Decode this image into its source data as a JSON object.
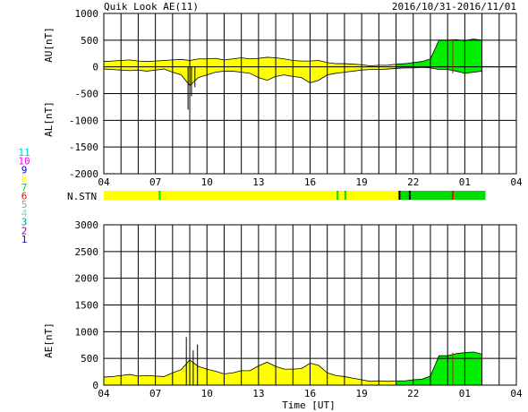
{
  "header": {
    "title": "Quik Look AE(11)",
    "date_range": "2016/10/31-2016/11/01"
  },
  "colors": {
    "yellow": "#ffff00",
    "green": "#00ee00",
    "red": "#ff0000",
    "grid": "#000000"
  },
  "station_legend": {
    "title": "N.STN",
    "items": [
      {
        "label": "11",
        "color": "#00cccc"
      },
      {
        "label": "10",
        "color": "#ff00ff"
      },
      {
        "label": "9",
        "color": "#0000cc"
      },
      {
        "label": "8",
        "color": "#ffff00"
      },
      {
        "label": "7",
        "color": "#00dd00"
      },
      {
        "label": "6",
        "color": "#ff0000"
      },
      {
        "label": "5",
        "color": "#999999"
      },
      {
        "label": "4",
        "color": "#99cccc"
      },
      {
        "label": "3",
        "color": "#009999"
      },
      {
        "label": "2",
        "color": "#990099"
      },
      {
        "label": "1",
        "color": "#0000ff"
      }
    ],
    "segments": [
      {
        "start": 4.0,
        "end": 21.2,
        "stations": 8
      },
      {
        "start": 21.2,
        "end": 26.2,
        "stations": 7
      }
    ],
    "markers": [
      {
        "hour": 7.25,
        "color": "#00dd00"
      },
      {
        "hour": 17.6,
        "color": "#00dd00"
      },
      {
        "hour": 18.05,
        "color": "#00dd00"
      },
      {
        "hour": 21.2,
        "color": "#000000"
      },
      {
        "hour": 21.8,
        "color": "#000000"
      },
      {
        "hour": 24.3,
        "color": "#ff0000"
      }
    ]
  },
  "x_axis": {
    "label": "Time [UT]",
    "ticks": [
      "04",
      "07",
      "10",
      "13",
      "16",
      "19",
      "22",
      "01",
      "04"
    ],
    "range_hours": [
      4,
      28
    ]
  },
  "chart_data": [
    {
      "type": "area",
      "name": "AU/AL",
      "ylabel_top": "AU[nT]",
      "ylabel_bottom": "AL[nT]",
      "ylim": [
        -2000,
        1000
      ],
      "yticks": [
        "1000",
        "500",
        "0",
        "-500",
        "-1000",
        "-1500",
        "-2000"
      ],
      "x_hours": [
        4.0,
        4.5,
        5.0,
        5.5,
        6.0,
        6.5,
        7.0,
        7.5,
        8.0,
        8.5,
        9.0,
        9.5,
        10.0,
        10.5,
        11.0,
        11.5,
        12.0,
        12.5,
        13.0,
        13.5,
        14.0,
        14.5,
        15.0,
        15.5,
        16.0,
        16.5,
        17.0,
        17.5,
        18.0,
        18.5,
        19.0,
        19.5,
        20.0,
        20.5,
        21.0,
        21.5,
        22.0,
        22.5,
        23.0,
        23.5,
        24.0,
        24.5,
        25.0,
        25.5,
        26.0
      ],
      "au": [
        100,
        110,
        120,
        130,
        110,
        100,
        110,
        120,
        130,
        140,
        120,
        150,
        150,
        160,
        130,
        150,
        170,
        150,
        160,
        180,
        170,
        150,
        120,
        110,
        110,
        120,
        80,
        60,
        60,
        50,
        40,
        20,
        30,
        30,
        50,
        60,
        80,
        100,
        150,
        500,
        500,
        510,
        490,
        520,
        500
      ],
      "al": [
        -40,
        -50,
        -60,
        -70,
        -60,
        -80,
        -60,
        -40,
        -100,
        -150,
        -350,
        -200,
        -150,
        -100,
        -80,
        -80,
        -100,
        -120,
        -200,
        -250,
        -180,
        -150,
        -180,
        -200,
        -300,
        -250,
        -150,
        -120,
        -100,
        -80,
        -60,
        -50,
        -50,
        -40,
        -30,
        -20,
        -20,
        -10,
        -20,
        -50,
        -50,
        -80,
        -120,
        -100,
        -80
      ],
      "al_spikes": [
        {
          "hour": 8.9,
          "value": -800
        },
        {
          "hour": 9.1,
          "value": -550
        },
        {
          "hour": 9.3,
          "value": -380
        }
      ]
    },
    {
      "type": "area",
      "name": "AE",
      "ylabel": "AE[nT]",
      "ylim": [
        0,
        3000
      ],
      "yticks": [
        "3000",
        "2500",
        "2000",
        "1500",
        "1000",
        "500",
        "0"
      ],
      "x_hours": [
        4.0,
        4.5,
        5.0,
        5.5,
        6.0,
        6.5,
        7.0,
        7.5,
        8.0,
        8.5,
        9.0,
        9.5,
        10.0,
        10.5,
        11.0,
        11.5,
        12.0,
        12.5,
        13.0,
        13.5,
        14.0,
        14.5,
        15.0,
        15.5,
        16.0,
        16.5,
        17.0,
        17.5,
        18.0,
        18.5,
        19.0,
        19.5,
        20.0,
        20.5,
        21.0,
        21.5,
        22.0,
        22.5,
        23.0,
        23.5,
        24.0,
        24.5,
        25.0,
        25.5,
        26.0
      ],
      "values": [
        150,
        160,
        180,
        200,
        170,
        180,
        170,
        160,
        230,
        290,
        470,
        350,
        300,
        260,
        210,
        230,
        270,
        270,
        360,
        430,
        350,
        300,
        300,
        310,
        410,
        370,
        230,
        180,
        160,
        130,
        100,
        70,
        80,
        70,
        80,
        80,
        100,
        110,
        170,
        550,
        550,
        590,
        610,
        620,
        580
      ],
      "spikes": [
        {
          "hour": 8.8,
          "value": 900
        },
        {
          "hour": 9.2,
          "value": 650
        },
        {
          "hour": 9.45,
          "value": 760
        }
      ]
    }
  ]
}
